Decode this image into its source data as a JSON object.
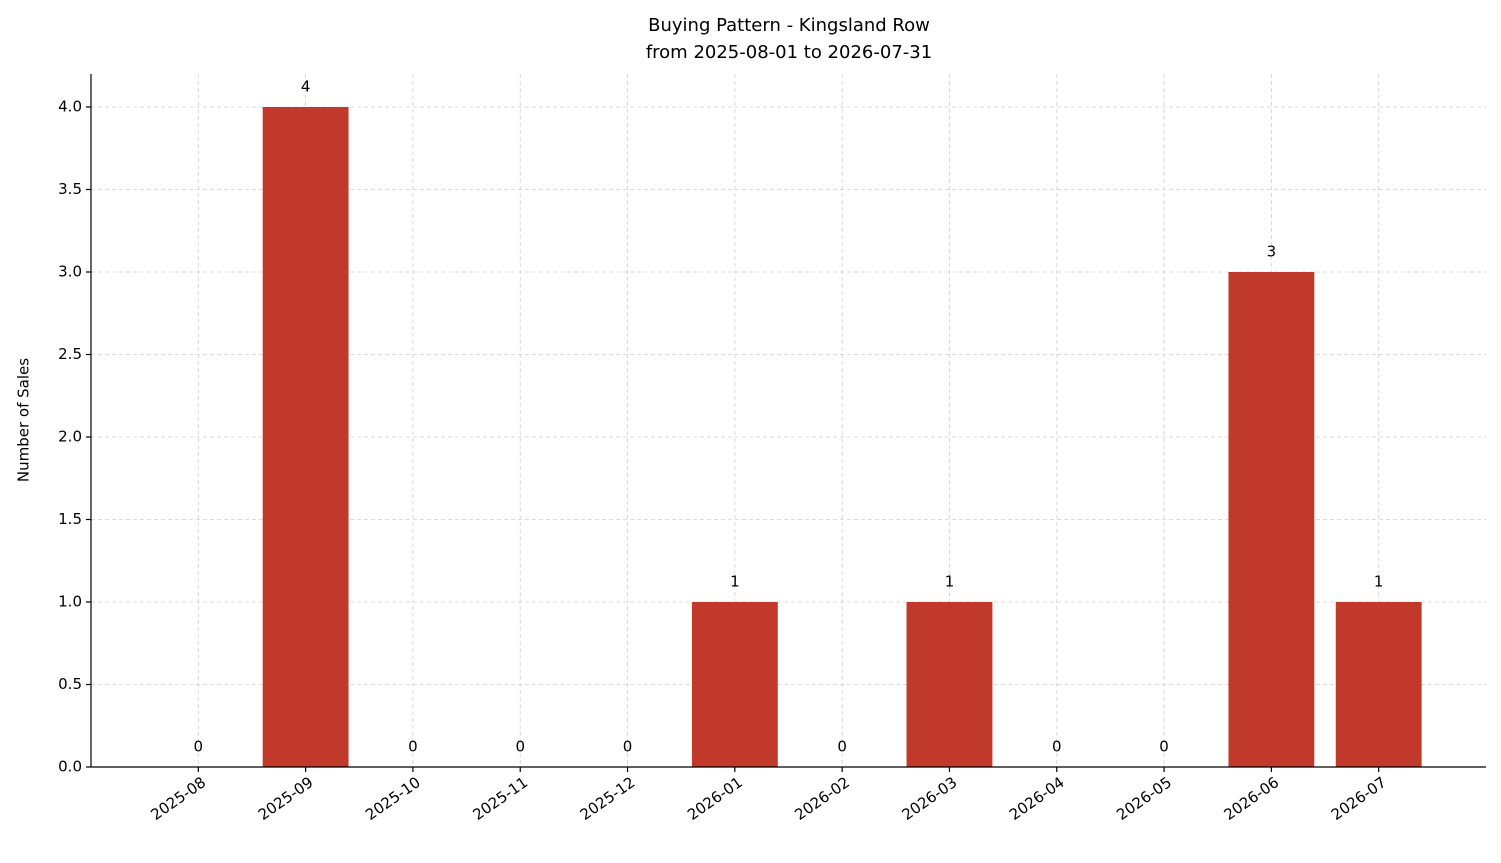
{
  "chart_data": {
    "type": "bar",
    "title": "Buying Pattern - Kingsland Row",
    "subtitle": "from 2025-08-01 to 2026-07-31",
    "y_label": "Number of Sales",
    "categories": [
      "2025-08",
      "2025-09",
      "2025-10",
      "2025-11",
      "2025-12",
      "2026-01",
      "2026-02",
      "2026-03",
      "2026-04",
      "2026-05",
      "2026-06",
      "2026-07"
    ],
    "values": [
      0,
      4,
      0,
      0,
      0,
      1,
      0,
      1,
      0,
      0,
      3,
      1
    ],
    "color": "#c0392b",
    "ylim": [
      0,
      4.2
    ],
    "yticks": [
      {
        "value": 0,
        "label": "0.0"
      },
      0.5,
      {
        "value": 1,
        "label": "1.0"
      },
      1.5,
      {
        "value": 2,
        "label": "2.0"
      },
      2.5,
      {
        "value": 3,
        "label": "3.0"
      },
      3.5,
      {
        "value": 4,
        "label": "4.0"
      }
    ],
    "grid": true
  }
}
